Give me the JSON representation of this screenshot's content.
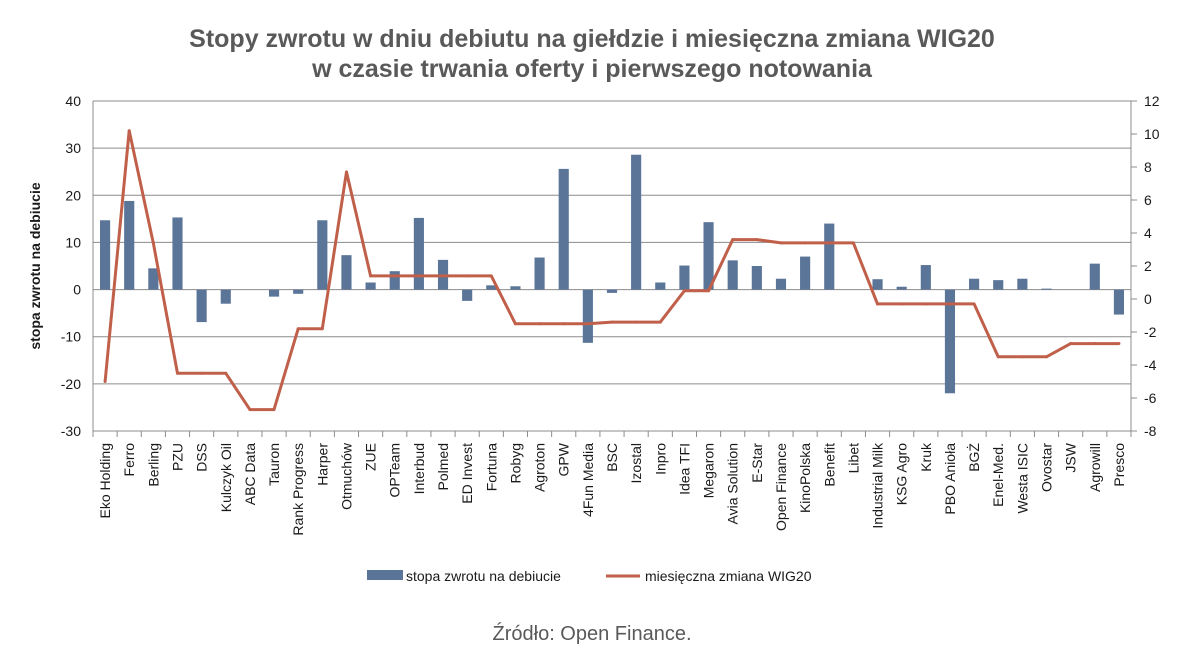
{
  "chart_data": {
    "type": "bar+line",
    "title_line1": "Stopy zwrotu w dniu debiutu na giełdzie i miesięczna zmiana WIG20",
    "title_line2": "w czasie trwania oferty i pierwszego notowania",
    "ylabel": "stopa zwrotu na debiucie",
    "ylim": [
      -30,
      40
    ],
    "y_ticks": [
      -30,
      -20,
      -10,
      0,
      10,
      20,
      30,
      40
    ],
    "y2lim": [
      -8,
      12
    ],
    "y2_ticks": [
      -8,
      -6,
      -4,
      -2,
      0,
      2,
      4,
      6,
      8,
      10,
      12
    ],
    "grid": true,
    "legend_position": "bottom",
    "categories": [
      "Eko Holding",
      "Ferro",
      "Berling",
      "PZU",
      "DSS",
      "Kulczyk Oil",
      "ABC Data",
      "Tauron",
      "Rank Progress",
      "Harper",
      "Otmuchów",
      "ZUE",
      "OPTeam",
      "Interbud",
      "Polmed",
      "ED Invest",
      "Fortuna",
      "Robyg",
      "Agroton",
      "GPW",
      "4Fun Media",
      "BSC",
      "Izostal",
      "Inpro",
      "Idea TFI",
      "Megaron",
      "Avia Solution",
      "E-Star",
      "Open Finance",
      "KinoPolska",
      "Benefit",
      "Libet",
      "Industrial Milk",
      "KSG Agro",
      "Kruk",
      "PBO Anioła",
      "BGŻ",
      "Enel-Med.",
      "Westa ISIC",
      "Ovostar",
      "JSW",
      "Agrowill",
      "Presco"
    ],
    "series": [
      {
        "name": "stopa zwrotu na debiucie",
        "type": "bar",
        "axis": "left",
        "color": "#5b7599",
        "values": [
          14.7,
          18.8,
          4.5,
          15.3,
          -6.9,
          -3.0,
          0.0,
          -1.5,
          -0.9,
          14.7,
          7.3,
          1.5,
          3.9,
          15.2,
          6.3,
          -2.4,
          0.9,
          0.7,
          6.8,
          25.6,
          -11.3,
          -0.7,
          28.6,
          1.5,
          5.1,
          14.3,
          6.2,
          5.0,
          2.3,
          7.0,
          14.0,
          0.0,
          2.2,
          0.6,
          5.2,
          -22.0,
          2.3,
          2.0,
          2.3,
          0.2,
          0.0,
          5.5,
          -5.3
        ]
      },
      {
        "name": "miesięczna zmiana WIG20",
        "type": "line",
        "axis": "right",
        "color": "#c0604a",
        "values": [
          -5.0,
          10.2,
          3.4,
          -4.5,
          -4.5,
          -4.5,
          -6.7,
          -6.7,
          -1.8,
          -1.8,
          7.7,
          1.4,
          1.4,
          1.4,
          1.4,
          1.4,
          1.4,
          -1.5,
          -1.5,
          -1.5,
          -1.5,
          -1.4,
          -1.4,
          -1.4,
          0.5,
          0.5,
          3.6,
          3.6,
          3.4,
          3.4,
          3.4,
          3.4,
          -0.3,
          -0.3,
          -0.3,
          -0.3,
          -0.3,
          -3.5,
          -3.5,
          -3.5,
          -2.7,
          -2.7,
          -2.7
        ]
      }
    ]
  },
  "legend": {
    "bar_label": "stopa zwrotu na debiucie",
    "line_label": "miesięczna zmiana WIG20"
  },
  "source": "Źródło: Open Finance."
}
